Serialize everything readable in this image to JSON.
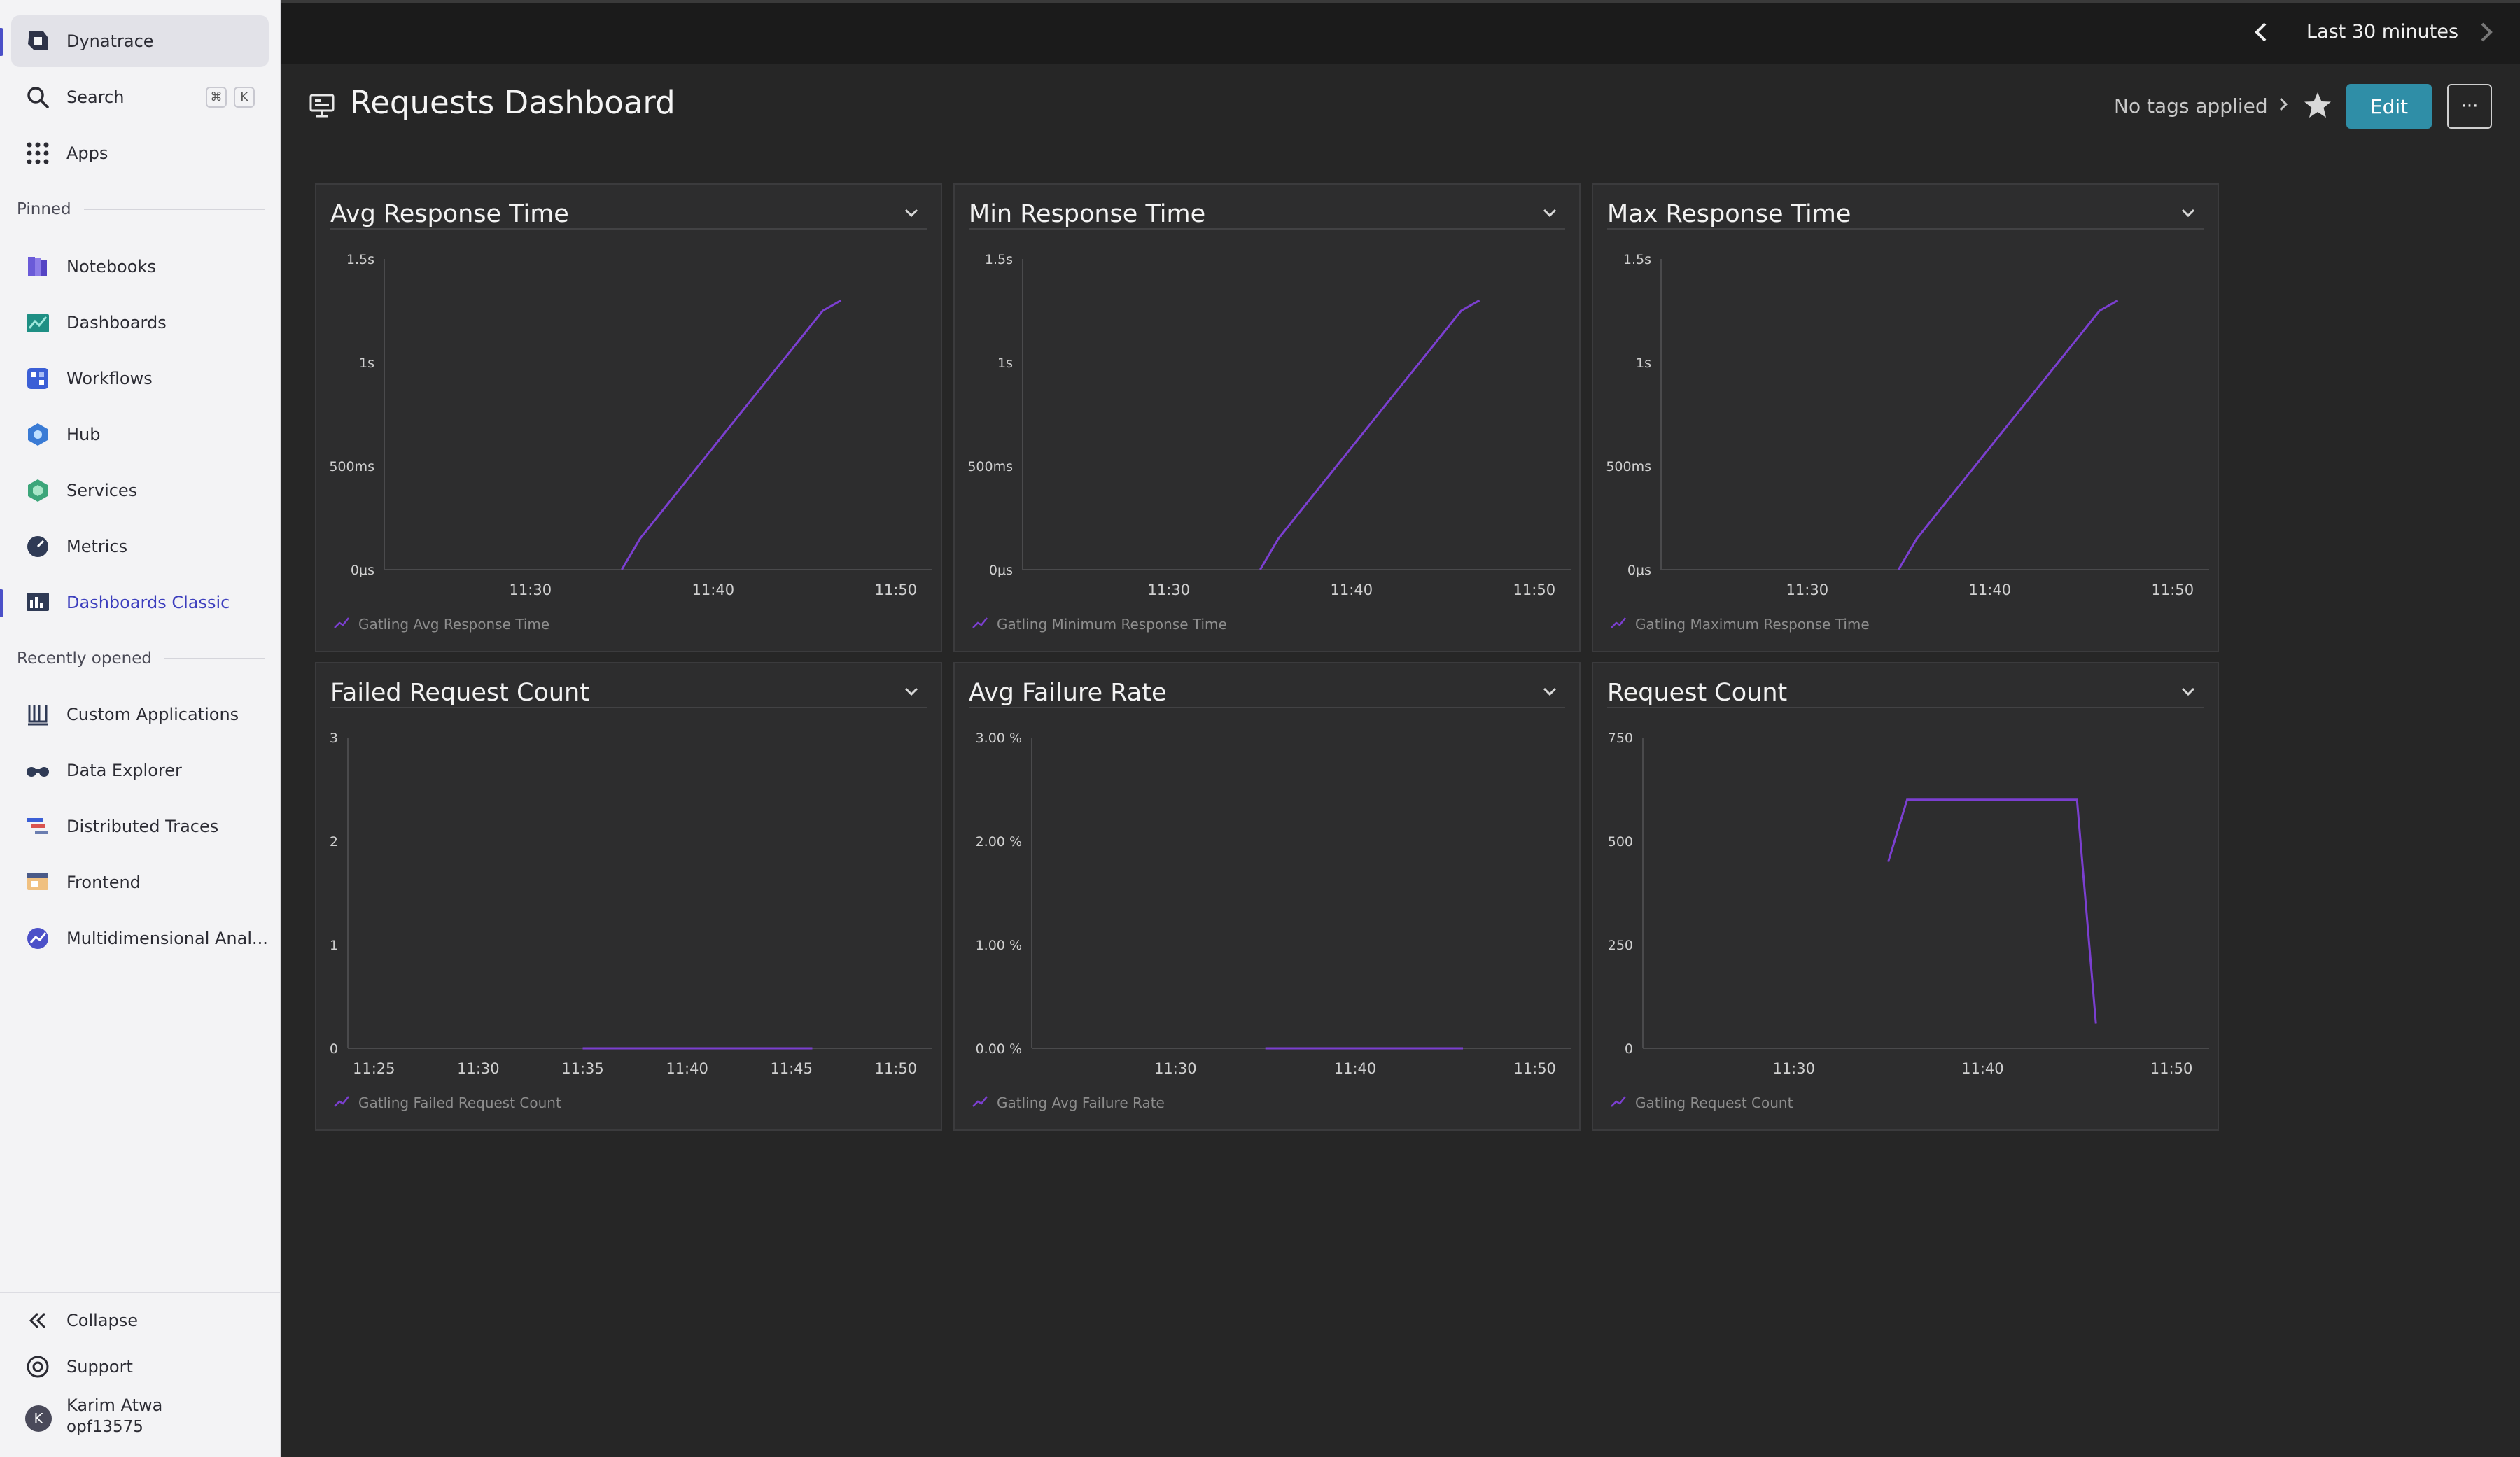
{
  "sidebar": {
    "brand": "Dynatrace",
    "search": {
      "label": "Search",
      "shortcut_cmd": "⌘",
      "shortcut_key": "K"
    },
    "apps": "Apps",
    "pinned_label": "Pinned",
    "pinned": [
      {
        "label": "Notebooks",
        "icon": "notebooks-icon",
        "color": "#5a4fcf"
      },
      {
        "label": "Dashboards",
        "icon": "dashboards-icon",
        "color": "#1f9e8f"
      },
      {
        "label": "Workflows",
        "icon": "workflows-icon",
        "color": "#3b5fd6"
      },
      {
        "label": "Hub",
        "icon": "hub-icon",
        "color": "#3a7bd5"
      },
      {
        "label": "Services",
        "icon": "services-icon",
        "color": "#3ca67a"
      },
      {
        "label": "Metrics",
        "icon": "metrics-icon",
        "color": "#2f3a55"
      },
      {
        "label": "Dashboards Classic",
        "icon": "dashboards-classic-icon",
        "color": "#2f3a55"
      }
    ],
    "recent_label": "Recently opened",
    "recent": [
      {
        "label": "Custom Applications",
        "icon": "custom-applications-icon"
      },
      {
        "label": "Data Explorer",
        "icon": "data-explorer-icon"
      },
      {
        "label": "Distributed Traces",
        "icon": "distributed-traces-icon"
      },
      {
        "label": "Frontend",
        "icon": "frontend-icon"
      },
      {
        "label": "Multidimensional Anal...",
        "icon": "multidimensional-analysis-icon"
      }
    ],
    "collapse": "Collapse",
    "support": "Support",
    "user": {
      "initial": "K",
      "name": "Karim Atwa",
      "id": "opf13575"
    }
  },
  "topbar": {
    "timeframe": "Last 30 minutes"
  },
  "header": {
    "title": "Requests Dashboard",
    "tags": "No tags applied",
    "edit_label": "Edit",
    "more_label": "···"
  },
  "theme": {
    "line_color": "#7b3fd0",
    "grid_color": "#4a4a4c",
    "tick_color": "#d0d0d0"
  },
  "tiles": [
    {
      "title": "Avg Response Time",
      "legend": "Gatling Avg Response Time",
      "chart_data": {
        "type": "line",
        "y_ticks": [
          "1.5s",
          "1s",
          "500ms",
          "0μs"
        ],
        "x_ticks": [
          "11:30",
          "11:40",
          "11:50"
        ],
        "series": [
          {
            "name": "Gatling Avg Response Time",
            "x": [
              "11:35",
              "11:36",
              "11:46",
              "11:47"
            ],
            "y": [
              0.0,
              0.15,
              1.25,
              1.3
            ]
          }
        ]
      }
    },
    {
      "title": "Min Response Time",
      "legend": "Gatling Minimum Response Time",
      "chart_data": {
        "type": "line",
        "y_ticks": [
          "1.5s",
          "1s",
          "500ms",
          "0μs"
        ],
        "x_ticks": [
          "11:30",
          "11:40",
          "11:50"
        ],
        "series": [
          {
            "name": "Gatling Minimum Response Time",
            "x": [
              "11:35",
              "11:36",
              "11:46",
              "11:47"
            ],
            "y": [
              0.0,
              0.15,
              1.25,
              1.3
            ]
          }
        ]
      }
    },
    {
      "title": "Max Response Time",
      "legend": "Gatling Maximum Response Time",
      "chart_data": {
        "type": "line",
        "y_ticks": [
          "1.5s",
          "1s",
          "500ms",
          "0μs"
        ],
        "x_ticks": [
          "11:30",
          "11:40",
          "11:50"
        ],
        "series": [
          {
            "name": "Gatling Maximum Response Time",
            "x": [
              "11:35",
              "11:36",
              "11:46",
              "11:47"
            ],
            "y": [
              0.0,
              0.15,
              1.25,
              1.3
            ]
          }
        ]
      }
    },
    {
      "title": "Failed Request Count",
      "legend": "Gatling Failed Request Count",
      "chart_data": {
        "type": "line",
        "y_ticks": [
          "3",
          "2",
          "1",
          "0"
        ],
        "x_ticks": [
          "11:25",
          "11:30",
          "11:35",
          "11:40",
          "11:45",
          "11:50"
        ],
        "series": [
          {
            "name": "Gatling Failed Request Count",
            "x": [
              "11:35",
              "11:46"
            ],
            "y": [
              0,
              0
            ]
          }
        ]
      }
    },
    {
      "title": "Avg Failure Rate",
      "legend": "Gatling Avg Failure Rate",
      "chart_data": {
        "type": "line",
        "y_ticks": [
          "3.00 %",
          "2.00 %",
          "1.00 %",
          "0.00 %"
        ],
        "x_ticks": [
          "11:30",
          "11:40",
          "11:50"
        ],
        "series": [
          {
            "name": "Gatling Avg Failure Rate",
            "x": [
              "11:35",
              "11:46"
            ],
            "y": [
              0,
              0
            ]
          }
        ]
      }
    },
    {
      "title": "Request Count",
      "legend": "Gatling Request Count",
      "chart_data": {
        "type": "line",
        "y_ticks": [
          "750",
          "500",
          "250",
          "0"
        ],
        "x_ticks": [
          "11:30",
          "11:40",
          "11:50"
        ],
        "series": [
          {
            "name": "Gatling Request Count",
            "x": [
              "11:35",
              "11:36",
              "11:45",
              "11:46"
            ],
            "y": [
              450,
              600,
              600,
              60
            ]
          }
        ]
      }
    }
  ]
}
